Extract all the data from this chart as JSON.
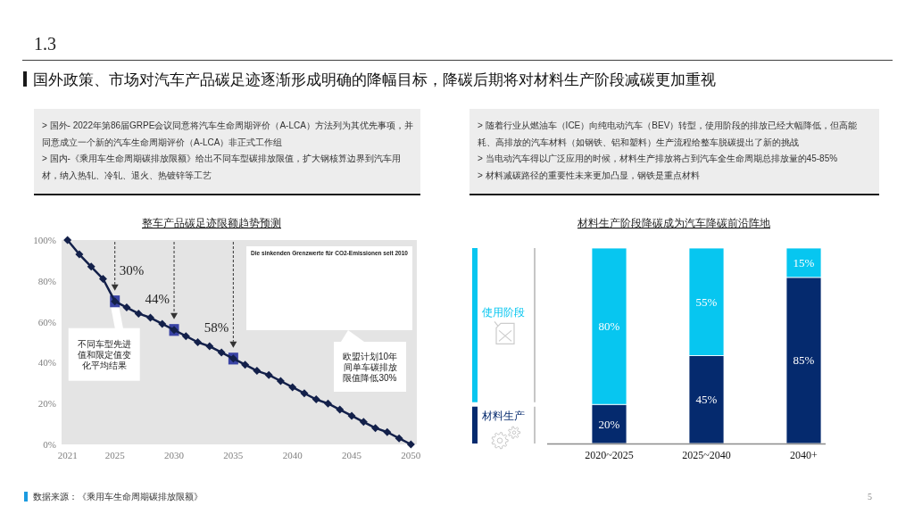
{
  "chart_data": [
    {
      "type": "other",
      "title": "国外政策、市场对汽车产品碳足迹逐渐形成明确的降幅目标，降碳后期将对材料生产阶段减碳更加重视",
      "annotations": [
        "1.3",
        "数据来源：《乘用车生命周期碳排放限额》",
        "5"
      ]
    },
    {
      "type": "other",
      "annotations": [
        "> 国外- 2022年第86届GRPE会议同意将汽车生命周期评价（A-LCA）方法列为其优先事项，并同意成立一个新的汽车生命周期评价（A-LCA）非正式工作组",
        "> 国内-《乘用车生命周期碳排放限额》给出不同车型碳排放限值，扩大钢核算边界到汽车用材，纳入热轧、冷轧、退火、热镀锌等工艺"
      ]
    },
    {
      "type": "other",
      "annotations": [
        "> 随着行业从燃油车（ICE）向纯电动汽车（BEV）转型，使用阶段的排放已经大幅降低，但高能耗、高排放的汽车材料（如钢铁、铝和塑料）生产流程给整车脱碳提出了新的挑战",
        "> 当电动汽车得以广泛应用的时候，材料生产排放将占到汽车全生命周期总排放量的45-85%",
        "> 材料减碳路径的重要性未来更加凸显，钢铁是重点材料"
      ]
    },
    {
      "type": "line",
      "title": "整车产品碳足迹限额趋势预测",
      "x": [
        2021,
        2022,
        2023,
        2024,
        2025,
        2026,
        2027,
        2028,
        2029,
        2030,
        2031,
        2032,
        2033,
        2034,
        2035,
        2036,
        2037,
        2038,
        2039,
        2040,
        2041,
        2042,
        2043,
        2044,
        2045,
        2046,
        2047,
        2048,
        2049,
        2050
      ],
      "series": [
        {
          "type": "scatter",
          "x": [
            2025,
            2030,
            2035
          ],
          "values": [
            70,
            56,
            42
          ],
          "color": "#2f3aa0",
          "marker": "square"
        },
        {
          "color": "#13204a",
          "values": [
            100,
            93,
            87,
            81,
            70,
            67,
            64,
            62,
            59,
            56,
            53,
            50,
            48,
            45,
            42,
            39,
            36,
            34,
            31,
            28,
            25,
            22,
            20,
            17,
            14,
            11,
            8,
            6,
            3,
            0
          ]
        }
      ],
      "marker": "diamond",
      "line_style": "solid",
      "xlim": [
        2020.5,
        2050.5
      ],
      "ylim": [
        0,
        100
      ],
      "xticks": [
        2021,
        2025,
        2030,
        2035,
        2040,
        2045,
        2050
      ],
      "yticks": [
        {
          "value": 0,
          "label": "0%"
        },
        {
          "value": 20,
          "label": "20%"
        },
        {
          "value": 40,
          "label": "40%"
        },
        {
          "value": 60,
          "label": "60%"
        },
        {
          "value": 80,
          "label": "80%"
        },
        {
          "value": 100,
          "label": "100%"
        }
      ],
      "annotations": [
        {
          "text": "30%",
          "x": 2025,
          "y": 70
        },
        {
          "text": "44%",
          "x": 2030,
          "y": 56
        },
        {
          "text": "58%",
          "x": 2035,
          "y": 42
        },
        {
          "text": "不同车型先进值和限定值变化平均结果",
          "x": 2025,
          "y": 70
        },
        "Die sinkenden Grenzwerte für CO2-Emissionen seit 2010",
        "欧盟计划10年间单车碳排放限值降低30%"
      ]
    },
    {
      "type": "bar",
      "title": "材料生产阶段降碳成为汽车降碳前沿阵地",
      "categories": [
        "2020~2025",
        "2025~2040",
        "2040+"
      ],
      "stacked": true,
      "legend": "left",
      "series": [
        {
          "name": "材料生产",
          "color": "#052a6e",
          "values": [
            20,
            45,
            85
          ],
          "value_labels": [
            "20%",
            "45%",
            "85%"
          ]
        },
        {
          "name": "使用阶段",
          "color": "#07c6f0",
          "values": [
            80,
            55,
            15
          ],
          "value_labels": [
            "80%",
            "55%",
            "15%"
          ]
        }
      ]
    }
  ]
}
